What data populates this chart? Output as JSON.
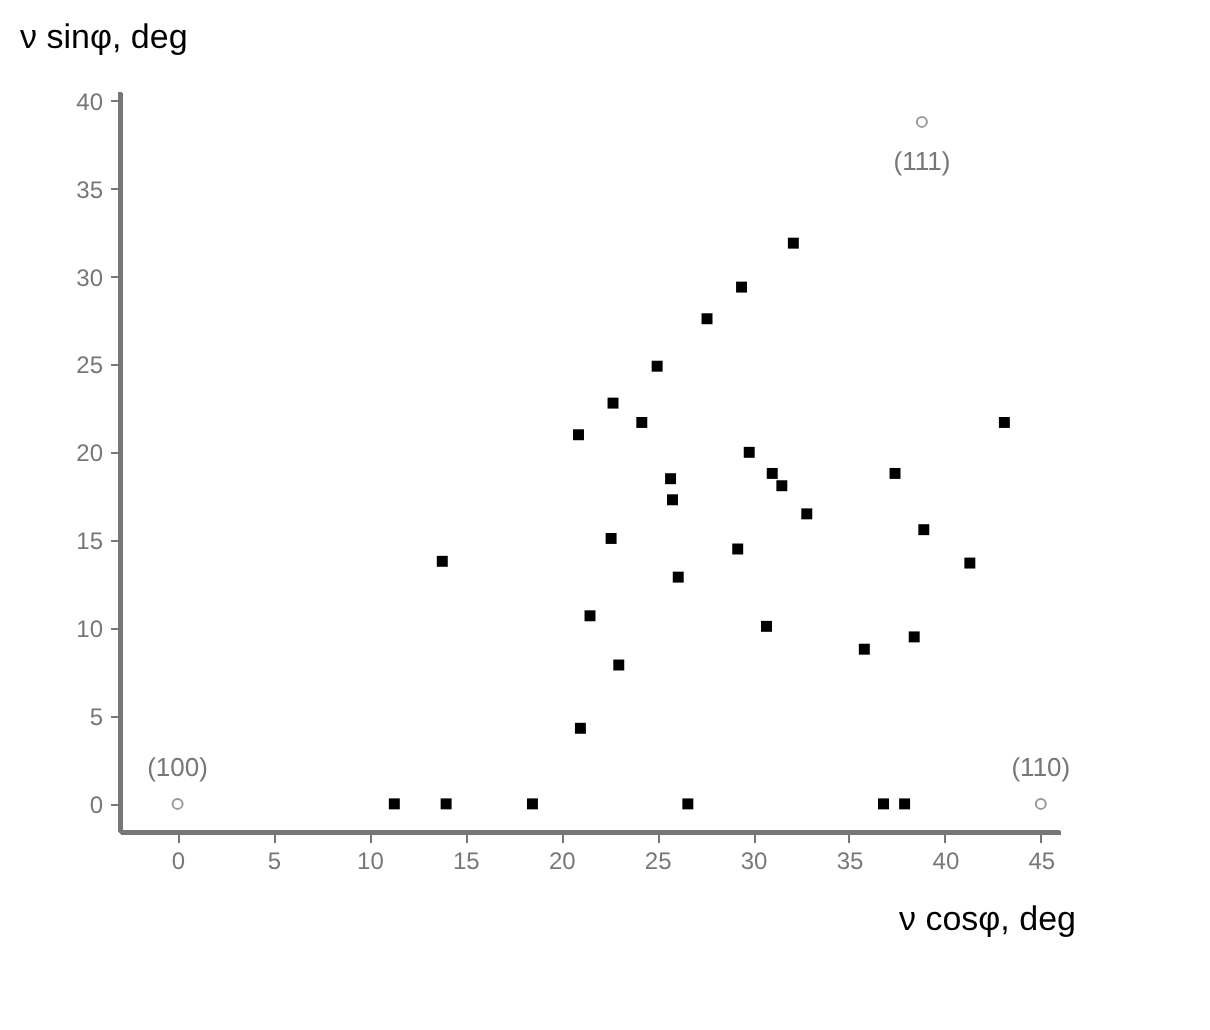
{
  "chart_data": {
    "type": "scatter",
    "xlabel": "ν cosφ, deg",
    "ylabel": "ν sinφ, deg",
    "xlim": [
      -3,
      46
    ],
    "ylim": [
      -1.6,
      40.5
    ],
    "xticks": [
      0,
      5,
      10,
      15,
      20,
      25,
      30,
      35,
      40,
      45
    ],
    "yticks": [
      0,
      5,
      10,
      15,
      20,
      25,
      30,
      35,
      40
    ],
    "grid": false,
    "series": [
      {
        "color": "#000000",
        "marker": "square",
        "x": [
          11.3,
          14.0,
          18.5,
          26.6,
          36.8,
          37.9,
          13.8,
          22.7,
          20.9,
          22.6,
          21.5,
          23.0,
          21.0,
          32.1,
          29.4,
          27.6,
          25.0,
          24.2,
          43.1,
          29.8,
          37.4,
          25.7,
          31.0,
          31.5,
          25.8,
          32.8,
          38.9,
          29.2,
          41.3,
          26.1,
          30.7,
          35.8,
          38.4
        ],
        "values": [
          0,
          0,
          0,
          0,
          0,
          0,
          13.8,
          22.8,
          21.0,
          15.1,
          10.7,
          7.9,
          4.3,
          31.9,
          29.4,
          27.6,
          24.9,
          21.7,
          21.7,
          20.0,
          18.8,
          18.5,
          18.8,
          18.1,
          17.3,
          16.5,
          15.6,
          14.5,
          13.7,
          12.9,
          10.1,
          8.8,
          9.5
        ]
      },
      {
        "color": "#999999",
        "marker": "circle",
        "x": [
          0,
          38.8,
          45
        ],
        "values": [
          0,
          38.8,
          0
        ]
      }
    ],
    "annotations": [
      {
        "text": "(100)",
        "x": 0,
        "y": 0
      },
      {
        "text": "(111)",
        "x": 38.8,
        "y": 38.8
      },
      {
        "text": "(110)",
        "x": 45,
        "y": 0
      }
    ]
  }
}
